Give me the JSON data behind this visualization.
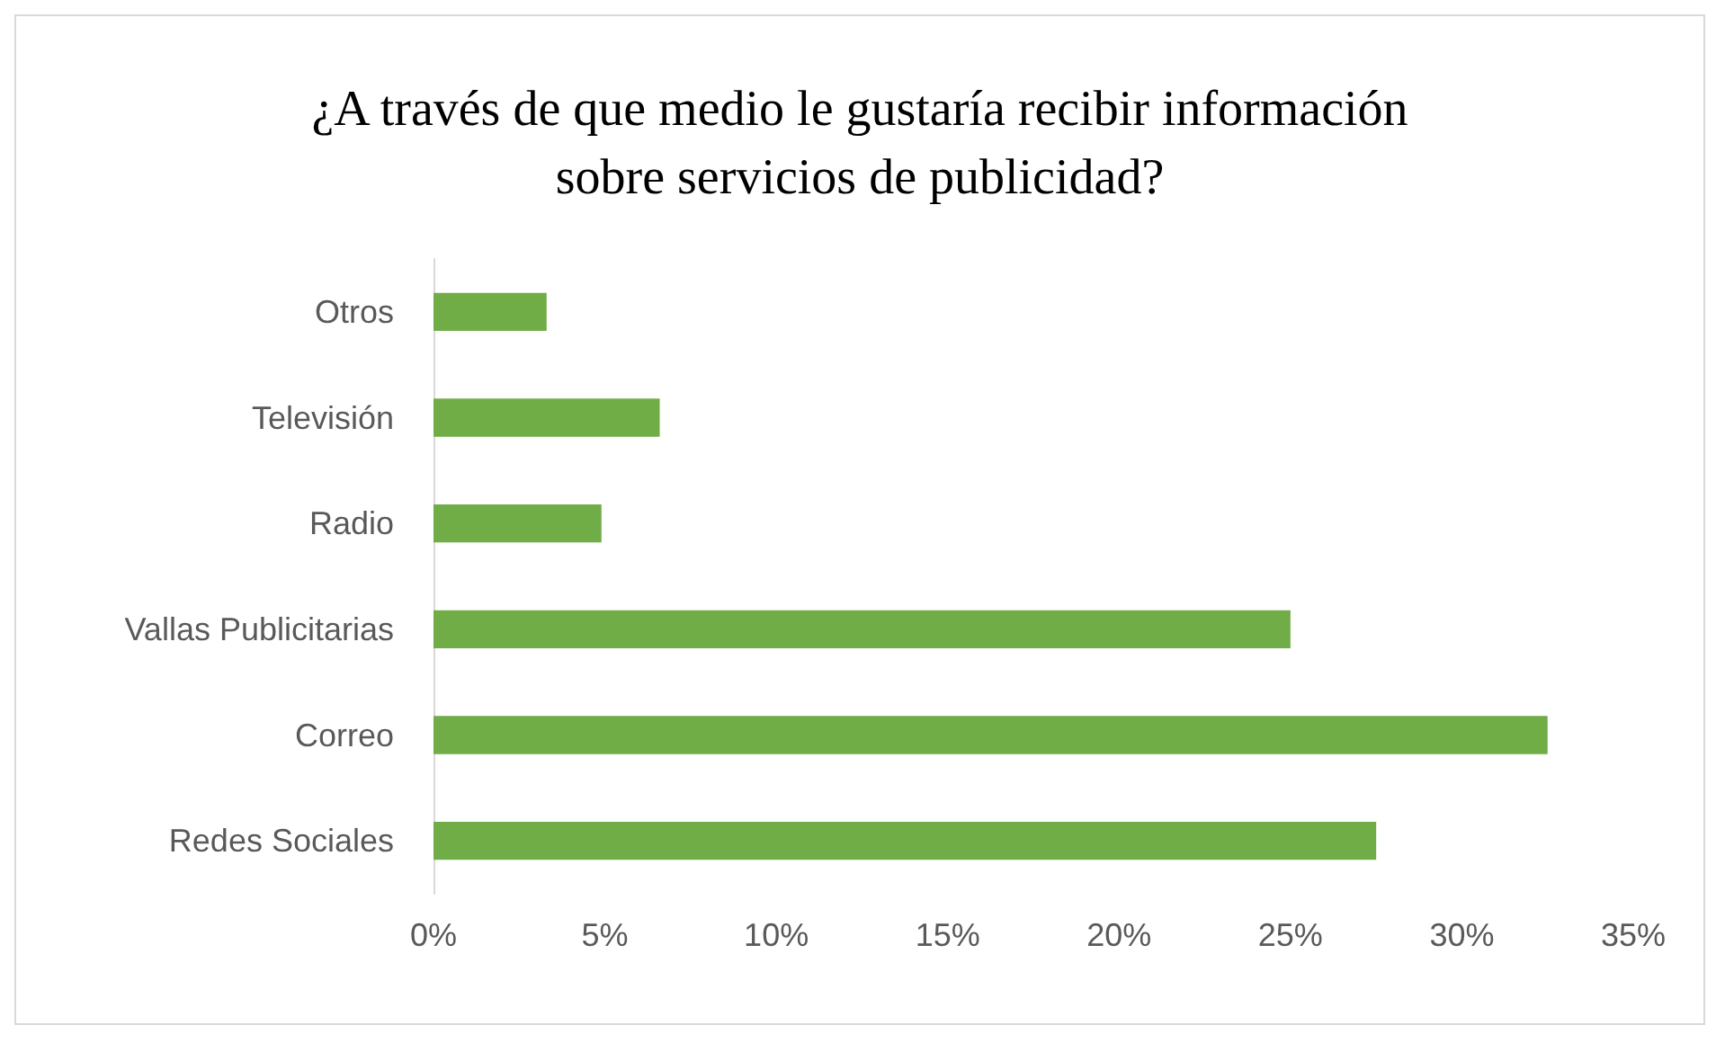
{
  "chart_data": {
    "type": "bar",
    "orientation": "horizontal",
    "title": "¿A través de que medio le gustaría recibir información\nsobre servicios de publicidad?",
    "categories": [
      "Otros",
      "Televisión",
      "Radio",
      "Vallas Publicitarias",
      "Correo",
      "Redes Sociales"
    ],
    "values": [
      3.3,
      6.6,
      4.9,
      25,
      32.5,
      27.5
    ],
    "color": "#70ad47",
    "xlim": [
      0,
      35
    ],
    "xticks": [
      {
        "value": 0,
        "label": "0%"
      },
      {
        "value": 5,
        "label": "5%"
      },
      {
        "value": 10,
        "label": "10%"
      },
      {
        "value": 15,
        "label": "15%"
      },
      {
        "value": 20,
        "label": "20%"
      },
      {
        "value": 25,
        "label": "25%"
      },
      {
        "value": 30,
        "label": "30%"
      },
      {
        "value": 35,
        "label": "35%"
      }
    ],
    "grid": false
  }
}
